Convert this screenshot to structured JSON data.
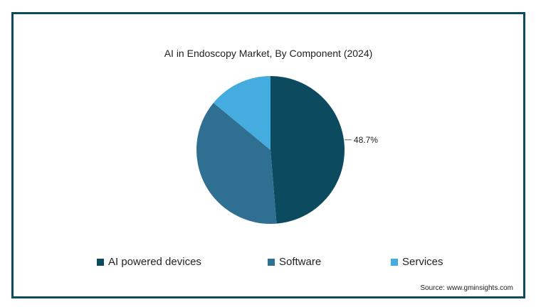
{
  "chart_data": {
    "type": "pie",
    "title": "AI in Endoscopy Market, By Component (2024)",
    "categories": [
      "AI powered devices",
      "Software",
      "Services"
    ],
    "values": [
      48.7,
      37.3,
      14.0
    ],
    "colors": [
      "#0c4a60",
      "#2f6f91",
      "#45acdf"
    ],
    "data_labels": [
      {
        "category": "AI powered devices",
        "text": "48.7%"
      }
    ],
    "legend": "bottom"
  },
  "source": "Source: www.gminsights.com"
}
